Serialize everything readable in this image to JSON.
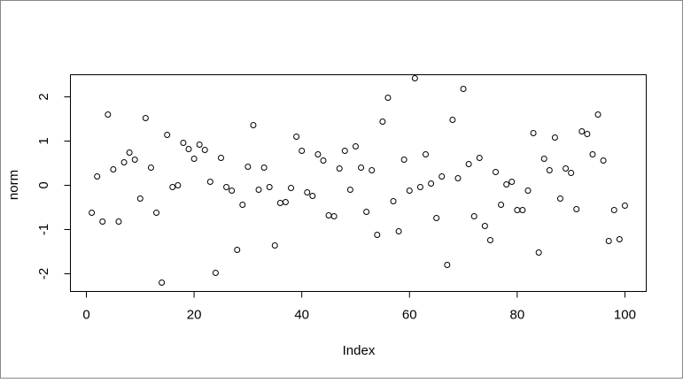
{
  "chart_data": {
    "type": "scatter",
    "xlabel": "Index",
    "ylabel": "norm",
    "color": "#000000",
    "x": [
      1,
      2,
      3,
      4,
      5,
      6,
      7,
      8,
      9,
      10,
      11,
      12,
      13,
      14,
      15,
      16,
      17,
      18,
      19,
      20,
      21,
      22,
      23,
      24,
      25,
      26,
      27,
      28,
      29,
      30,
      31,
      32,
      33,
      34,
      35,
      36,
      37,
      38,
      39,
      40,
      41,
      42,
      43,
      44,
      45,
      46,
      47,
      48,
      49,
      50,
      51,
      52,
      53,
      54,
      55,
      56,
      57,
      58,
      59,
      60,
      61,
      62,
      63,
      64,
      65,
      66,
      67,
      68,
      69,
      70,
      71,
      72,
      73,
      74,
      75,
      76,
      77,
      78,
      79,
      80,
      81,
      82,
      83,
      84,
      85,
      86,
      87,
      88,
      89,
      90,
      91,
      92,
      93,
      94,
      95,
      96,
      97,
      98,
      99,
      100
    ],
    "values": [
      -0.62,
      0.2,
      -0.82,
      1.6,
      0.36,
      -0.82,
      0.52,
      0.74,
      0.58,
      -0.3,
      1.52,
      0.4,
      -0.62,
      -2.2,
      1.14,
      -0.04,
      0,
      0.96,
      0.82,
      0.6,
      0.92,
      0.8,
      0.08,
      -1.98,
      0.62,
      -0.04,
      -0.12,
      -1.46,
      -0.44,
      0.42,
      1.36,
      -0.1,
      0.4,
      -0.04,
      -1.36,
      -0.4,
      -0.38,
      -0.06,
      1.1,
      0.78,
      -0.16,
      -0.24,
      0.7,
      0.56,
      -0.68,
      -0.7,
      0.38,
      0.78,
      -0.1,
      0.88,
      0.4,
      -0.6,
      0.34,
      -1.12,
      1.44,
      1.98,
      -0.36,
      -1.04,
      0.58,
      -0.12,
      2.42,
      -0.04,
      0.7,
      0.04,
      -0.74,
      0.2,
      -1.8,
      1.48,
      0.16,
      2.18,
      0.48,
      -0.7,
      0.62,
      -0.92,
      -1.24,
      0.3,
      -0.44,
      0.02,
      0.08,
      -0.56,
      -0.56,
      -0.12,
      1.18,
      -1.52,
      0.6,
      0.34,
      1.08,
      -0.3,
      0.38,
      0.28,
      -0.54,
      1.22,
      1.16,
      0.7,
      1.6,
      0.56,
      -1.26,
      -0.56,
      -1.22,
      -0.46
    ],
    "xlim": [
      -2.96,
      103.96
    ],
    "ylim": [
      -2.4,
      2.5
    ],
    "xticks": [
      0,
      20,
      40,
      60,
      80,
      100
    ],
    "yticks": [
      -2,
      -1,
      0,
      1,
      2
    ]
  }
}
